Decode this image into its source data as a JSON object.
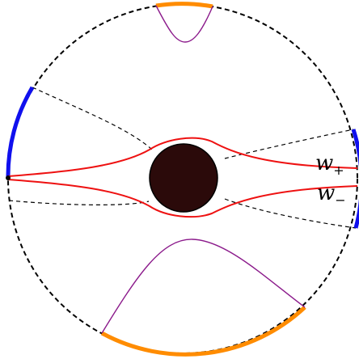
{
  "labels": {
    "w_plus": {
      "base": "w",
      "sub": "+"
    },
    "w_minus": {
      "base": "w",
      "sub": "−"
    }
  },
  "colors": {
    "boundary": "#000000",
    "blue_arc": "#1010ee",
    "orange_arc": "#ff8c00",
    "red_curve": "#ee1111",
    "purple_curve": "#8b1a8b",
    "disk_fill": "#2b0a0a",
    "background": "#ffffff"
  }
}
